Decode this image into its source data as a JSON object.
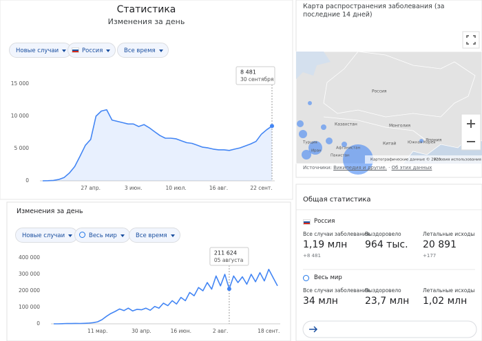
{
  "stats_panel": {
    "title": "Статистика",
    "subtitle": "Изменения за день",
    "filters": [
      "Новые случаи",
      "Россия",
      "Все время"
    ],
    "chart": {
      "type": "line",
      "color": "#4285f4",
      "area": true,
      "categories": [
        null,
        null,
        null,
        null,
        null,
        null,
        null,
        null,
        null,
        "27 апр.",
        null,
        null,
        null,
        null,
        null,
        null,
        null,
        "3 июн.",
        null,
        null,
        null,
        null,
        null,
        null,
        null,
        "10 июл.",
        null,
        null,
        null,
        null,
        null,
        null,
        null,
        "16 авг.",
        null,
        null,
        null,
        null,
        null,
        null,
        null,
        "22 сент.",
        null,
        null
      ],
      "values": [
        0,
        20,
        60,
        200,
        500,
        1200,
        2200,
        3800,
        5500,
        6400,
        10000,
        10800,
        11000,
        9400,
        9200,
        9000,
        8800,
        8800,
        8400,
        8700,
        8200,
        7600,
        7000,
        6600,
        6600,
        6500,
        6200,
        5900,
        5800,
        5500,
        5200,
        5100,
        4900,
        4800,
        4800,
        4700,
        4900,
        5100,
        5400,
        5700,
        6100,
        7200,
        7900,
        8481
      ],
      "value_labels": [
        null,
        null,
        null,
        null,
        null,
        null,
        null,
        null,
        null,
        null,
        null,
        null,
        null,
        null,
        null,
        null,
        null,
        null,
        null,
        null,
        null,
        null,
        null,
        null,
        null,
        null,
        null,
        null,
        null,
        null,
        null,
        null,
        null,
        null,
        null,
        null,
        null,
        null,
        null,
        null,
        null,
        null,
        null,
        "8 481"
      ],
      "tooltip_date": "30 сентября",
      "ylim": [
        0,
        15000
      ],
      "yticks": [
        0,
        {
          "value": 5000,
          "label": "5 000"
        },
        {
          "value": 10000,
          "label": "10 000"
        },
        {
          "value": 15000,
          "label": "15 000"
        }
      ]
    }
  },
  "daily_panel": {
    "title": "Изменения за день",
    "filters": [
      "Новые случаи",
      "Весь мир",
      "Все время"
    ],
    "chart": {
      "type": "line",
      "color": "#4285f4",
      "area": false,
      "categories": [
        null,
        null,
        null,
        null,
        null,
        null,
        null,
        null,
        null,
        null,
        "11 мар.",
        null,
        null,
        null,
        null,
        null,
        null,
        null,
        null,
        null,
        "30 апр.",
        null,
        null,
        null,
        null,
        null,
        null,
        null,
        null,
        "16 июн.",
        null,
        null,
        null,
        null,
        null,
        null,
        null,
        null,
        "2 авг.",
        null,
        null,
        null,
        null,
        null,
        null,
        null,
        null,
        null,
        null,
        "18 сент.",
        null,
        null
      ],
      "values": [
        0,
        0,
        1000,
        2000,
        1500,
        2500,
        2000,
        3000,
        4000,
        7000,
        12000,
        25000,
        45000,
        62000,
        75000,
        90000,
        80000,
        95000,
        78000,
        88000,
        85000,
        95000,
        82000,
        105000,
        95000,
        125000,
        110000,
        140000,
        120000,
        160000,
        140000,
        190000,
        170000,
        220000,
        200000,
        250000,
        210000,
        290000,
        230000,
        300000,
        211624,
        290000,
        250000,
        285000,
        240000,
        300000,
        255000,
        310000,
        260000,
        330000,
        280000,
        230000
      ],
      "value_labels": [
        null,
        null,
        null,
        null,
        null,
        null,
        null,
        null,
        null,
        null,
        null,
        null,
        null,
        null,
        null,
        null,
        null,
        null,
        null,
        null,
        null,
        null,
        null,
        null,
        null,
        null,
        null,
        null,
        null,
        null,
        null,
        null,
        null,
        null,
        null,
        null,
        null,
        null,
        null,
        null,
        "211 624",
        null,
        null,
        null,
        null,
        null,
        null,
        null,
        null,
        null,
        null,
        null
      ],
      "tooltip_date": "05 августа",
      "ylim": [
        0,
        400000
      ],
      "yticks": [
        0,
        {
          "value": 100000,
          "label": "100 000"
        },
        {
          "value": 200000,
          "label": "200 000"
        },
        {
          "value": 300000,
          "label": "300 000"
        },
        {
          "value": 400000,
          "label": "400 000"
        }
      ]
    }
  },
  "map": {
    "title": "Карта распространения заболевания (за последние 14 дней)",
    "labels": [
      "Россия",
      "Казахстан",
      "Монголия",
      "Китай",
      "Южная Корея",
      "Япония",
      "Афганистан",
      "Пакистан",
      "Турция",
      "Иран"
    ],
    "attribution": "Картографические данные © 2020",
    "terms": "Условия использования",
    "sources_prefix": "Источники:",
    "sources_link": "Википедия и другие.",
    "about": "Об этих данных"
  },
  "overview": {
    "title": "Общая статистика",
    "regions": [
      {
        "name": "Россия",
        "stats": [
          {
            "label": "Все случаи заболевания",
            "value": "1,19 млн",
            "delta": "+8 481"
          },
          {
            "label": "Выздоровело",
            "value": "964 тыс.",
            "delta": null
          },
          {
            "label": "Летальные исходы",
            "value": "20 891",
            "delta": "+177"
          }
        ]
      },
      {
        "name": "Весь мир",
        "stats": [
          {
            "label": "Все случаи заболевания",
            "value": "34 млн",
            "delta": null
          },
          {
            "label": "Выздоровело",
            "value": "23,7 млн",
            "delta": null
          },
          {
            "label": "Летальные исходы",
            "value": "1,02 млн",
            "delta": null
          }
        ]
      }
    ]
  }
}
